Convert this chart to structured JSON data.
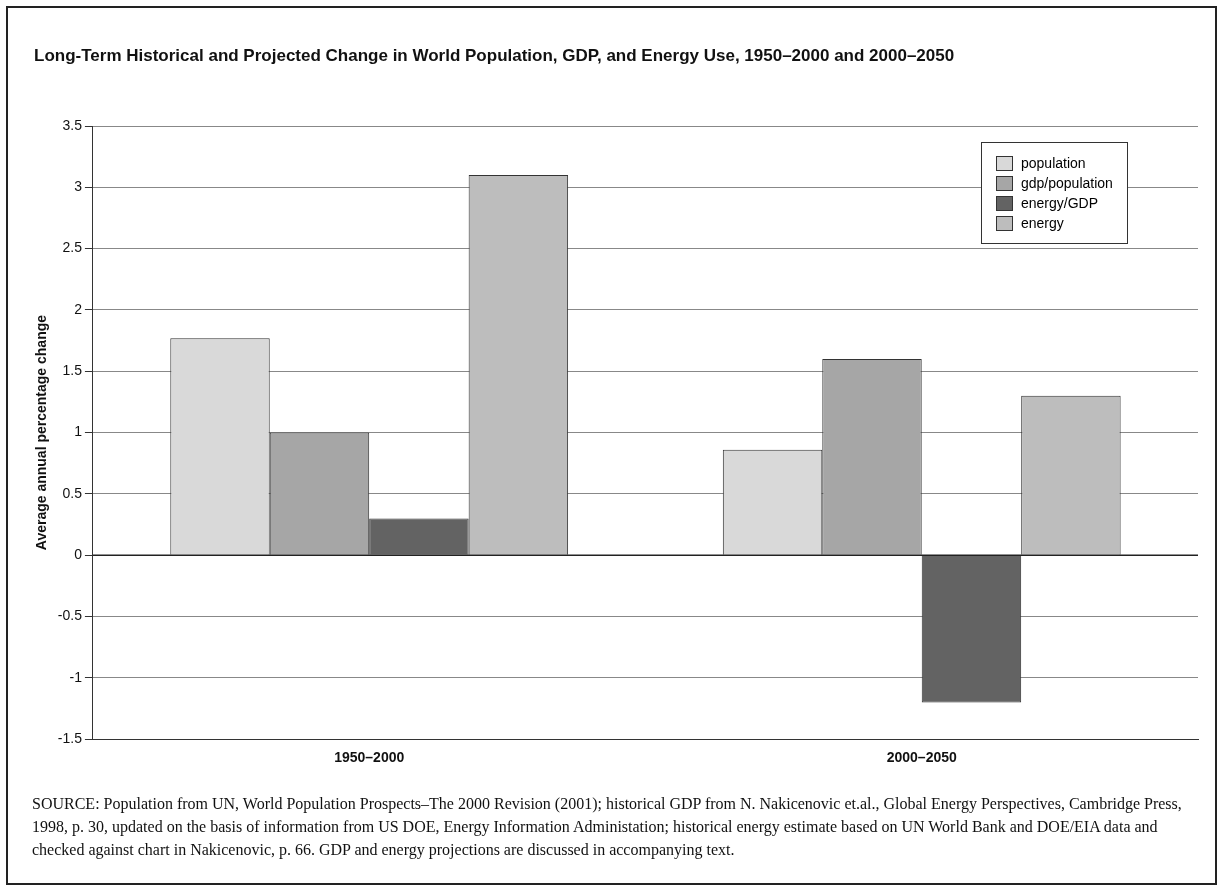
{
  "chart_data": {
    "type": "bar",
    "title": "Long-Term Historical and Projected Change in World Population, GDP, and Energy Use, 1950–2000 and 2000–2050",
    "ylabel": "Average annual percentage change",
    "categories": [
      "1950–2000",
      "2000–2050"
    ],
    "series": [
      {
        "name": "population",
        "color": "#d9d9d9",
        "values": [
          1.77,
          0.86
        ]
      },
      {
        "name": "gdp/population",
        "color": "#a6a6a6",
        "values": [
          1.0,
          1.6
        ]
      },
      {
        "name": "energy/GDP",
        "color": "#636363",
        "values": [
          0.3,
          -1.2
        ]
      },
      {
        "name": "energy",
        "color": "#bdbdbd",
        "values": [
          3.1,
          1.3
        ]
      }
    ],
    "ylim": [
      -1.5,
      3.5
    ],
    "yticks": [
      -1.5,
      -1,
      -0.5,
      0,
      0.5,
      1,
      1.5,
      2,
      2.5,
      3,
      3.5
    ],
    "grid": "y",
    "legend": "top right",
    "annotations": [
      "SOURCE: Population from UN, World Population Prospects–The 2000 Revision (2001); historical GDP from N. Nakicenovic et.al., Global Energy Perspectives, Cambridge Press, 1998, p. 30, updated on the basis of information from US DOE, Energy Information Administation; historical energy estimate based on UN World Bank and DOE/EIA data and checked against chart in Nakicenovic, p. 66. GDP and energy projections are discussed in accompanying text."
    ]
  }
}
